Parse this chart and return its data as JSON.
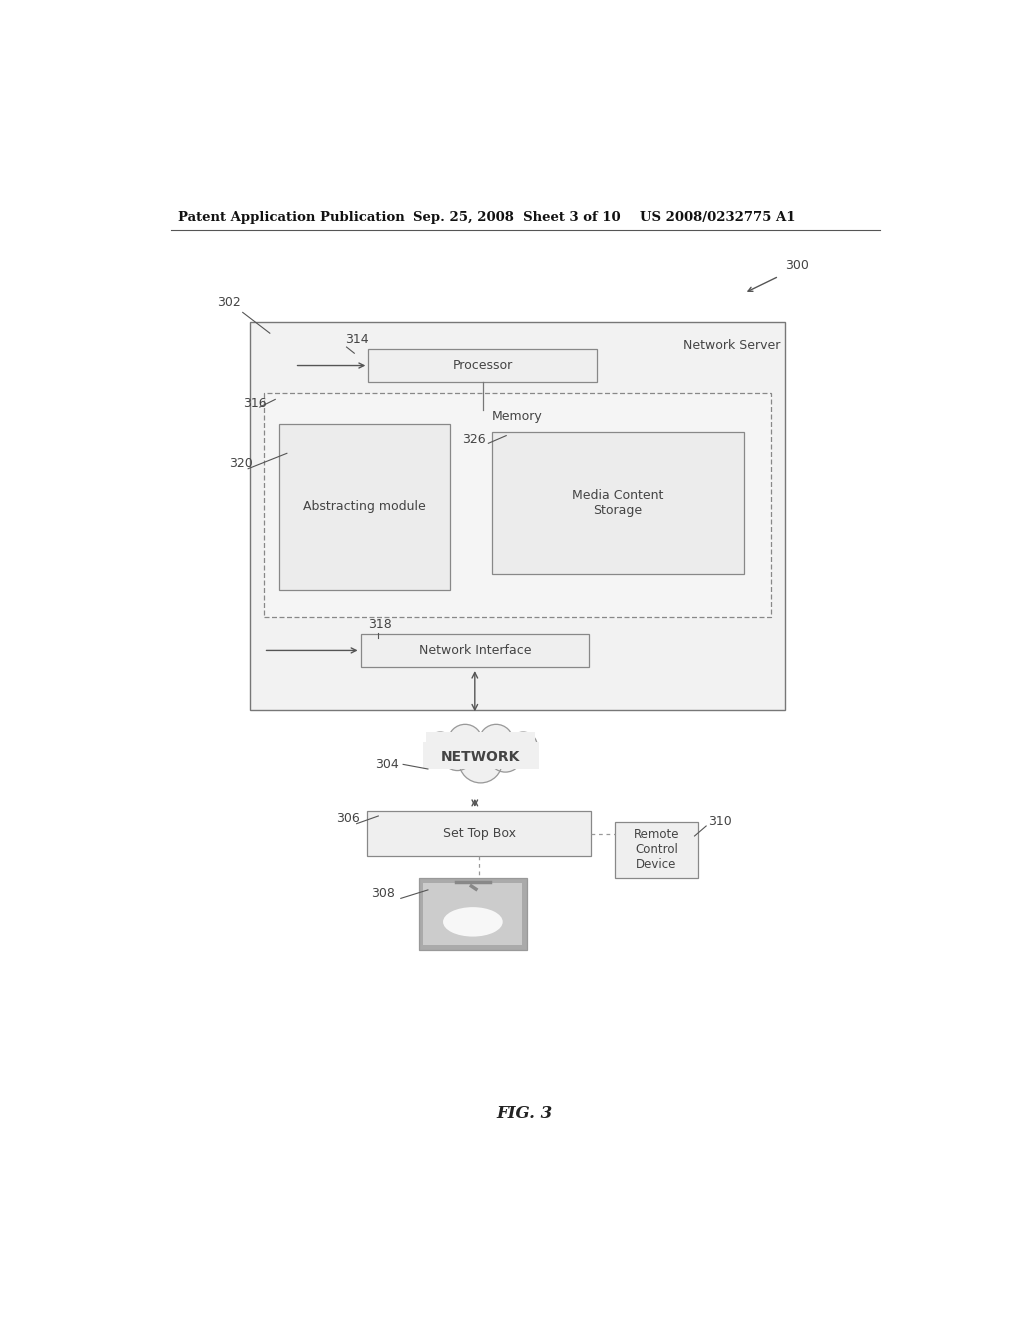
{
  "bg_color": "#ffffff",
  "header_text": "Patent Application Publication",
  "header_date": "Sep. 25, 2008  Sheet 3 of 10",
  "header_patent": "US 2008/0232775 A1",
  "fig_label": "FIG. 3",
  "label_300": "300",
  "label_302": "302",
  "label_304": "304",
  "label_306": "306",
  "label_308": "308",
  "label_310": "310",
  "label_314": "314",
  "label_316": "316",
  "label_318": "318",
  "label_320": "320",
  "label_326": "326",
  "text_network_server": "Network Server",
  "text_processor": "Processor",
  "text_memory": "Memory",
  "text_abstracting": "Abstracting module",
  "text_media": "Media Content\nStorage",
  "text_network_interface": "Network Interface",
  "text_network": "NETWORK",
  "text_set_top_box": "Set Top Box",
  "text_remote": "Remote\nControl\nDevice",
  "line_color": "#888888",
  "text_color": "#444444",
  "edge_color": "#888888"
}
